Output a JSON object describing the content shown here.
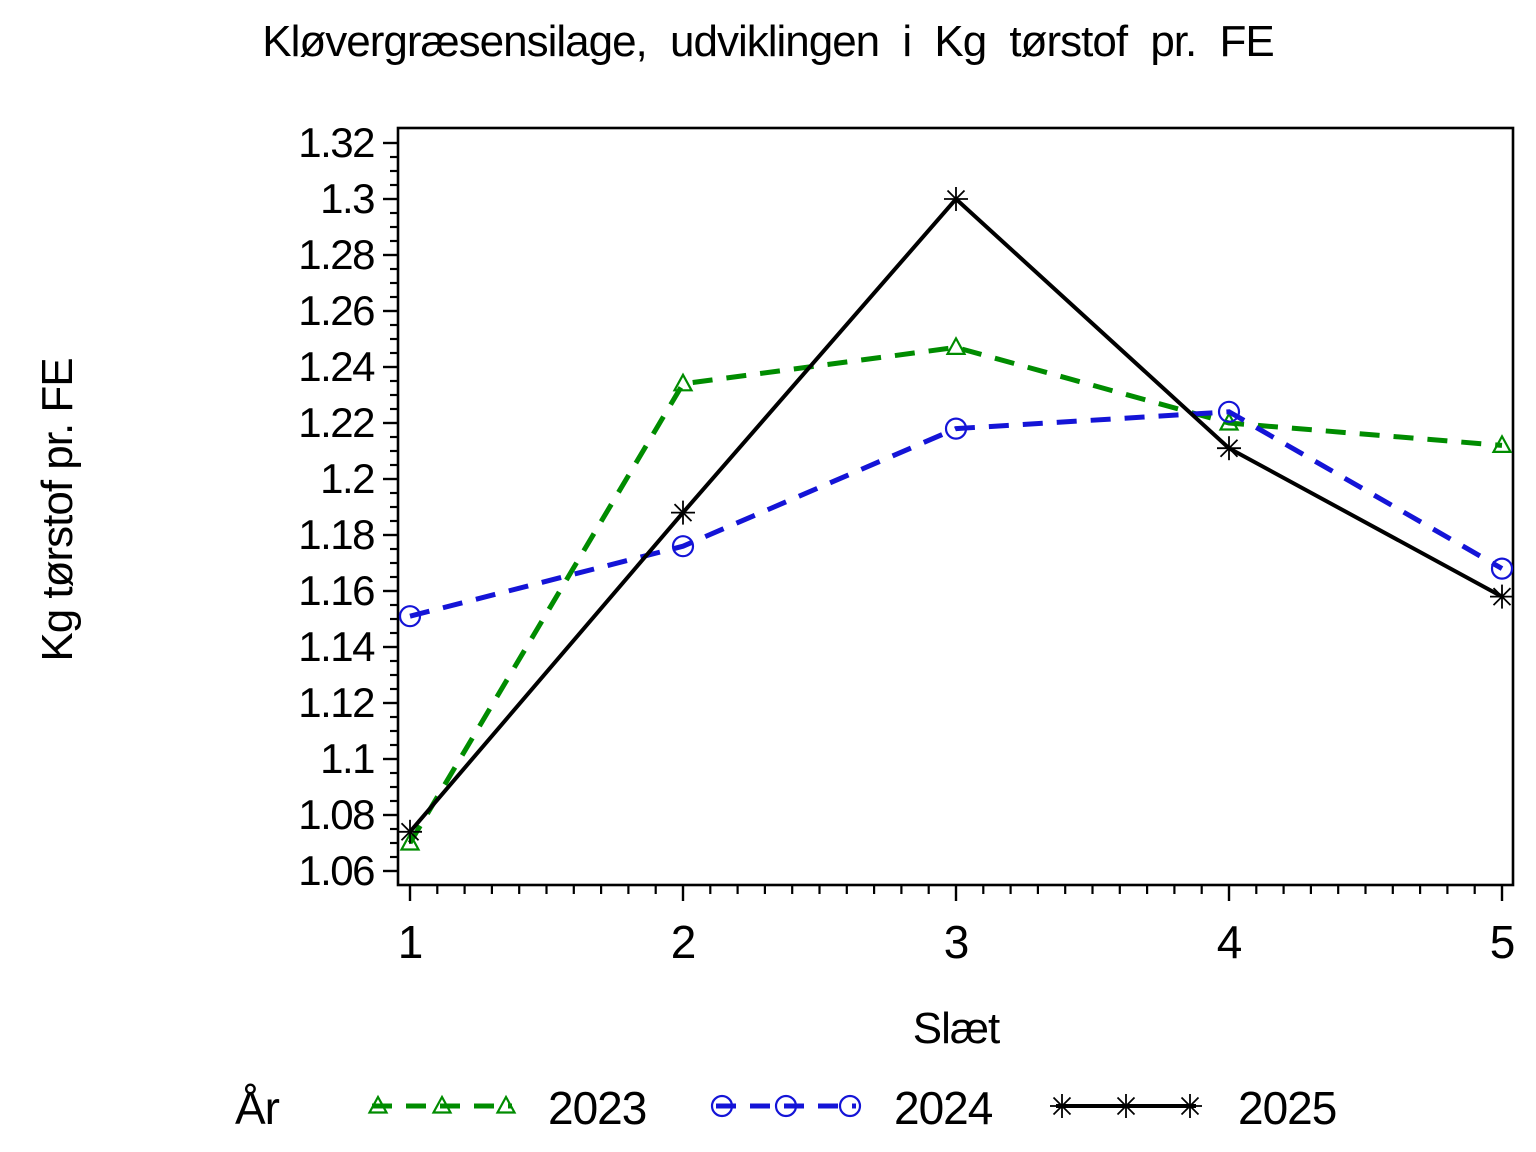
{
  "chart_data": {
    "type": "line",
    "title": "Kløvergræsensilage, udviklingen i Kg tørstof pr. FE",
    "xlabel": "Slæt",
    "ylabel": "Kg tørstof pr. FE",
    "legend_title": "År",
    "legend_position": "bottom",
    "grid": false,
    "frame_color": "#000000",
    "x": [
      1,
      2,
      3,
      4,
      5
    ],
    "xtick_labels": [
      "1",
      "2",
      "3",
      "4",
      "5"
    ],
    "ytick_values": [
      1.32,
      1.3,
      1.28,
      1.26,
      1.24,
      1.22,
      1.2,
      1.18,
      1.16,
      1.14,
      1.12,
      1.1,
      1.08,
      1.06
    ],
    "ytick_labels": [
      "1.32",
      "1.3",
      "1.28",
      "1.26",
      "1.24",
      "1.22",
      "1.2",
      "1.18",
      "1.16",
      "1.14",
      "1.12",
      "1.1",
      "1.08",
      "1.06"
    ],
    "ylim": [
      1.055,
      1.325
    ],
    "xlim": [
      0.96,
      5.04
    ],
    "y_minor_step": 0.005,
    "x_minor_step": 0.1,
    "series": [
      {
        "name": "2023",
        "color": "#008c00",
        "line_style": "dashed",
        "marker": "triangle",
        "values": [
          1.07,
          1.234,
          1.247,
          1.22,
          1.212
        ]
      },
      {
        "name": "2024",
        "color": "#1414d7",
        "line_style": "dashed",
        "marker": "circle",
        "values": [
          1.151,
          1.176,
          1.218,
          1.224,
          1.168
        ]
      },
      {
        "name": "2025",
        "color": "#000000",
        "line_style": "solid",
        "marker": "star",
        "values": [
          1.074,
          1.188,
          1.3,
          1.211,
          1.158
        ]
      }
    ]
  }
}
